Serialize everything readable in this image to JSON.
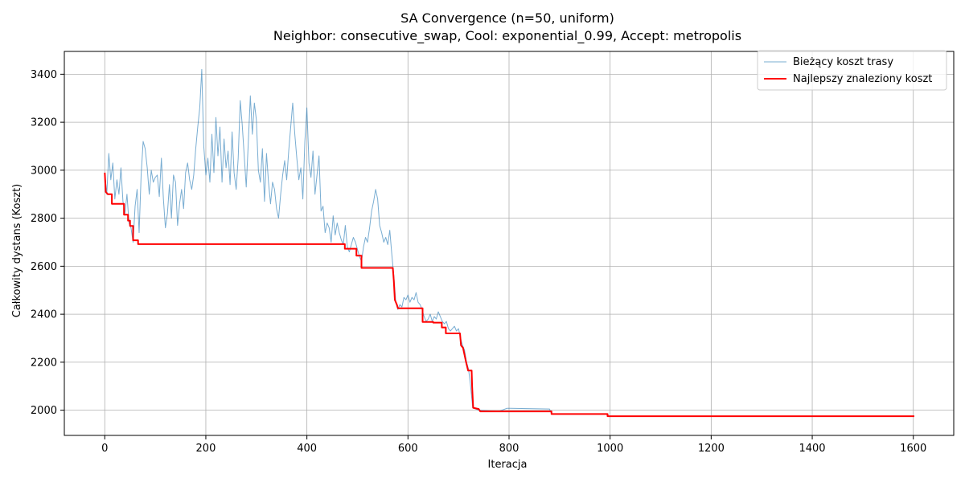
{
  "chart_data": {
    "type": "line",
    "title": "SA Convergence (n=50, uniform)",
    "subtitle": "Neighbor: consecutive_swap, Cool: exponential_0.99, Accept: metropolis",
    "xlabel": "Iteracja",
    "ylabel": "Całkowity dystans (Koszt)",
    "xlim": [
      -80,
      1680
    ],
    "ylim": [
      1895,
      3495
    ],
    "xticks": [
      0,
      200,
      400,
      600,
      800,
      1000,
      1200,
      1400,
      1600
    ],
    "yticks": [
      2000,
      2200,
      2400,
      2600,
      2800,
      3000,
      3200,
      3400
    ],
    "grid": true,
    "legend_position": "top-right",
    "series": [
      {
        "name": "Bieżący koszt trasy",
        "color": "#1f77b4",
        "style": "thin-translucent",
        "points": [
          [
            0,
            2990
          ],
          [
            4,
            2900
          ],
          [
            8,
            3070
          ],
          [
            12,
            2960
          ],
          [
            16,
            3030
          ],
          [
            20,
            2880
          ],
          [
            24,
            2960
          ],
          [
            28,
            2900
          ],
          [
            32,
            3010
          ],
          [
            36,
            2870
          ],
          [
            40,
            2820
          ],
          [
            44,
            2900
          ],
          [
            48,
            2780
          ],
          [
            52,
            2760
          ],
          [
            56,
            2700
          ],
          [
            60,
            2850
          ],
          [
            64,
            2920
          ],
          [
            68,
            2740
          ],
          [
            72,
            2980
          ],
          [
            76,
            3120
          ],
          [
            80,
            3090
          ],
          [
            84,
            3010
          ],
          [
            88,
            2900
          ],
          [
            92,
            3000
          ],
          [
            96,
            2950
          ],
          [
            100,
            2970
          ],
          [
            104,
            2980
          ],
          [
            108,
            2890
          ],
          [
            112,
            3050
          ],
          [
            116,
            2880
          ],
          [
            120,
            2760
          ],
          [
            124,
            2820
          ],
          [
            128,
            2940
          ],
          [
            132,
            2800
          ],
          [
            136,
            2980
          ],
          [
            140,
            2950
          ],
          [
            144,
            2770
          ],
          [
            148,
            2860
          ],
          [
            152,
            2920
          ],
          [
            156,
            2840
          ],
          [
            160,
            2990
          ],
          [
            164,
            3030
          ],
          [
            168,
            2960
          ],
          [
            172,
            2920
          ],
          [
            176,
            2980
          ],
          [
            180,
            3090
          ],
          [
            184,
            3180
          ],
          [
            188,
            3260
          ],
          [
            192,
            3420
          ],
          [
            196,
            3100
          ],
          [
            200,
            2980
          ],
          [
            204,
            3050
          ],
          [
            208,
            2950
          ],
          [
            212,
            3150
          ],
          [
            216,
            2990
          ],
          [
            220,
            3220
          ],
          [
            224,
            3060
          ],
          [
            228,
            3180
          ],
          [
            232,
            2950
          ],
          [
            236,
            3130
          ],
          [
            240,
            3010
          ],
          [
            244,
            3080
          ],
          [
            248,
            2940
          ],
          [
            252,
            3160
          ],
          [
            256,
            2990
          ],
          [
            260,
            2920
          ],
          [
            264,
            3050
          ],
          [
            268,
            3290
          ],
          [
            272,
            3190
          ],
          [
            276,
            3060
          ],
          [
            280,
            2930
          ],
          [
            284,
            3110
          ],
          [
            288,
            3310
          ],
          [
            292,
            3150
          ],
          [
            296,
            3280
          ],
          [
            300,
            3210
          ],
          [
            304,
            3000
          ],
          [
            308,
            2950
          ],
          [
            312,
            3090
          ],
          [
            316,
            2870
          ],
          [
            320,
            3070
          ],
          [
            324,
            2950
          ],
          [
            328,
            2860
          ],
          [
            332,
            2950
          ],
          [
            336,
            2920
          ],
          [
            340,
            2840
          ],
          [
            344,
            2800
          ],
          [
            348,
            2900
          ],
          [
            352,
            2980
          ],
          [
            356,
            3040
          ],
          [
            360,
            2960
          ],
          [
            364,
            3080
          ],
          [
            368,
            3180
          ],
          [
            372,
            3280
          ],
          [
            376,
            3150
          ],
          [
            380,
            3050
          ],
          [
            384,
            2960
          ],
          [
            388,
            3010
          ],
          [
            392,
            2880
          ],
          [
            396,
            3120
          ],
          [
            400,
            3260
          ],
          [
            404,
            3030
          ],
          [
            408,
            2970
          ],
          [
            412,
            3080
          ],
          [
            416,
            2900
          ],
          [
            420,
            2980
          ],
          [
            424,
            3060
          ],
          [
            428,
            2830
          ],
          [
            432,
            2850
          ],
          [
            436,
            2740
          ],
          [
            440,
            2780
          ],
          [
            444,
            2760
          ],
          [
            448,
            2700
          ],
          [
            452,
            2810
          ],
          [
            456,
            2730
          ],
          [
            460,
            2780
          ],
          [
            464,
            2740
          ],
          [
            468,
            2710
          ],
          [
            472,
            2690
          ],
          [
            476,
            2770
          ],
          [
            480,
            2680
          ],
          [
            484,
            2660
          ],
          [
            488,
            2690
          ],
          [
            492,
            2720
          ],
          [
            496,
            2700
          ],
          [
            500,
            2670
          ],
          [
            504,
            2640
          ],
          [
            508,
            2620
          ],
          [
            512,
            2680
          ],
          [
            516,
            2720
          ],
          [
            520,
            2700
          ],
          [
            524,
            2760
          ],
          [
            528,
            2830
          ],
          [
            532,
            2870
          ],
          [
            536,
            2920
          ],
          [
            540,
            2880
          ],
          [
            544,
            2770
          ],
          [
            548,
            2740
          ],
          [
            552,
            2700
          ],
          [
            556,
            2720
          ],
          [
            560,
            2690
          ],
          [
            564,
            2750
          ],
          [
            568,
            2650
          ],
          [
            572,
            2560
          ],
          [
            576,
            2450
          ],
          [
            580,
            2420
          ],
          [
            584,
            2440
          ],
          [
            588,
            2430
          ],
          [
            592,
            2470
          ],
          [
            596,
            2460
          ],
          [
            600,
            2480
          ],
          [
            604,
            2450
          ],
          [
            608,
            2470
          ],
          [
            612,
            2460
          ],
          [
            616,
            2490
          ],
          [
            620,
            2450
          ],
          [
            624,
            2440
          ],
          [
            628,
            2420
          ],
          [
            632,
            2390
          ],
          [
            636,
            2370
          ],
          [
            640,
            2380
          ],
          [
            644,
            2400
          ],
          [
            648,
            2370
          ],
          [
            652,
            2390
          ],
          [
            656,
            2380
          ],
          [
            660,
            2410
          ],
          [
            664,
            2390
          ],
          [
            668,
            2370
          ],
          [
            672,
            2360
          ],
          [
            676,
            2370
          ],
          [
            680,
            2340
          ],
          [
            684,
            2330
          ],
          [
            688,
            2340
          ],
          [
            692,
            2350
          ],
          [
            696,
            2330
          ],
          [
            700,
            2340
          ],
          [
            704,
            2300
          ],
          [
            708,
            2270
          ],
          [
            712,
            2250
          ],
          [
            716,
            2200
          ],
          [
            720,
            2170
          ],
          [
            724,
            2100
          ],
          [
            728,
            2010
          ],
          [
            740,
            2000
          ],
          [
            780,
            1995
          ],
          [
            796,
            2008
          ],
          [
            880,
            2005
          ],
          [
            884,
            1985
          ],
          [
            994,
            1985
          ],
          [
            998,
            1975
          ],
          [
            1600,
            1975
          ]
        ]
      },
      {
        "name": "Najlepszy znaleziony koszt",
        "color": "#ff0000",
        "style": "step",
        "points": [
          [
            0,
            2990
          ],
          [
            2,
            2910
          ],
          [
            4,
            2905
          ],
          [
            6,
            2900
          ],
          [
            14,
            2900
          ],
          [
            14,
            2860
          ],
          [
            38,
            2860
          ],
          [
            38,
            2815
          ],
          [
            46,
            2815
          ],
          [
            46,
            2790
          ],
          [
            50,
            2790
          ],
          [
            50,
            2768
          ],
          [
            56,
            2768
          ],
          [
            56,
            2708
          ],
          [
            66,
            2708
          ],
          [
            66,
            2692
          ],
          [
            475,
            2692
          ],
          [
            475,
            2673
          ],
          [
            498,
            2673
          ],
          [
            498,
            2644
          ],
          [
            508,
            2644
          ],
          [
            508,
            2593
          ],
          [
            570,
            2593
          ],
          [
            572,
            2540
          ],
          [
            574,
            2460
          ],
          [
            578,
            2440
          ],
          [
            580,
            2425
          ],
          [
            629,
            2425
          ],
          [
            629,
            2368
          ],
          [
            650,
            2368
          ],
          [
            650,
            2365
          ],
          [
            667,
            2365
          ],
          [
            667,
            2345
          ],
          [
            675,
            2345
          ],
          [
            675,
            2320
          ],
          [
            703,
            2320
          ],
          [
            705,
            2270
          ],
          [
            709,
            2260
          ],
          [
            715,
            2200
          ],
          [
            719,
            2165
          ],
          [
            726,
            2165
          ],
          [
            727,
            2100
          ],
          [
            729,
            2010
          ],
          [
            740,
            2005
          ],
          [
            743,
            1995
          ],
          [
            884,
            1995
          ],
          [
            884,
            1984
          ],
          [
            995,
            1984
          ],
          [
            995,
            1975
          ],
          [
            1602,
            1975
          ]
        ]
      }
    ]
  }
}
